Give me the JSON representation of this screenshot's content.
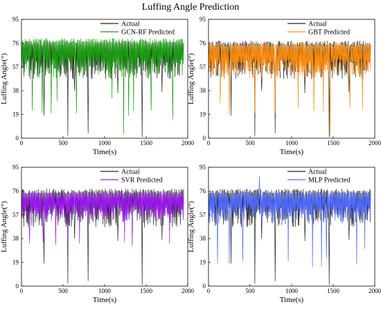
{
  "title": "Luffing Angle  Prediction",
  "colors": {
    "actual": "#222222",
    "gcn": "#1a9e12",
    "gbt": "#ff8c0a",
    "svr": "#9b17f2",
    "mlp": "#4f6bff"
  },
  "chart_data": [
    {
      "type": "line",
      "xlabel": "Time(s)",
      "ylabel": "Luffing Angle(°)",
      "xlim": [
        0,
        2000
      ],
      "ylim": [
        0,
        95
      ],
      "xticks": [
        0,
        500,
        1000,
        1500,
        2000
      ],
      "yticks": [
        0,
        19,
        38,
        57,
        76,
        95
      ],
      "legend_position": "top-center",
      "series": [
        {
          "name": "Actual",
          "color_key": "actual",
          "band": [
            47,
            78
          ],
          "spikes": [
            [
              270,
              18
            ],
            [
              560,
              2
            ],
            [
              800,
              4
            ],
            [
              1450,
              1
            ],
            [
              640,
              38
            ],
            [
              1160,
              36
            ],
            [
              1690,
              37
            ]
          ]
        },
        {
          "name": "GCN-RF Predicted",
          "color_key": "gcn",
          "band": [
            48,
            80
          ],
          "spikes": [
            [
              130,
              22
            ],
            [
              250,
              20
            ],
            [
              360,
              20
            ],
            [
              430,
              30
            ],
            [
              660,
              20
            ],
            [
              1090,
              32
            ],
            [
              1230,
              3
            ],
            [
              1290,
              18
            ],
            [
              1350,
              22
            ],
            [
              1560,
              22
            ],
            [
              1820,
              15
            ]
          ]
        }
      ]
    },
    {
      "type": "line",
      "xlabel": "Time(s)",
      "ylabel": "Luffing Angle(°)",
      "xlim": [
        0,
        2000
      ],
      "ylim": [
        0,
        95
      ],
      "xticks": [
        0,
        500,
        1000,
        1500,
        2000
      ],
      "yticks": [
        0,
        19,
        38,
        57,
        76,
        95
      ],
      "legend_position": "top-center",
      "series": [
        {
          "name": "Actual",
          "color_key": "actual",
          "band": [
            47,
            78
          ],
          "spikes": [
            [
              270,
              18
            ],
            [
              560,
              2
            ],
            [
              800,
              4
            ],
            [
              1450,
              1
            ],
            [
              640,
              38
            ],
            [
              1160,
              36
            ],
            [
              1690,
              37
            ]
          ]
        },
        {
          "name": "GBT Predicted",
          "color_key": "gbt",
          "band": [
            48,
            77
          ],
          "spikes": [
            [
              140,
              28
            ],
            [
              250,
              19
            ],
            [
              560,
              20
            ],
            [
              800,
              20
            ],
            [
              1080,
              24
            ],
            [
              1270,
              22
            ],
            [
              1380,
              22
            ],
            [
              1460,
              2
            ],
            [
              1700,
              24
            ],
            [
              1850,
              23
            ]
          ]
        }
      ]
    },
    {
      "type": "line",
      "xlabel": "Time(s)",
      "ylabel": "Luffing Angle(°)",
      "xlim": [
        0,
        2000
      ],
      "ylim": [
        0,
        95
      ],
      "xticks": [
        0,
        500,
        1000,
        1500,
        2000
      ],
      "yticks": [
        0,
        19,
        38,
        57,
        76,
        95
      ],
      "legend_position": "top-center",
      "series": [
        {
          "name": "Actual",
          "color_key": "actual",
          "band": [
            47,
            78
          ],
          "spikes": [
            [
              270,
              18
            ],
            [
              560,
              2
            ],
            [
              800,
              4
            ],
            [
              1450,
              1
            ],
            [
              640,
              38
            ],
            [
              1160,
              36
            ],
            [
              1690,
              37
            ]
          ]
        },
        {
          "name": "SVR Predicted",
          "color_key": "svr",
          "band": [
            52,
            76
          ],
          "spikes": [
            [
              100,
              34
            ],
            [
              260,
              35
            ],
            [
              410,
              33
            ],
            [
              560,
              35
            ],
            [
              700,
              34
            ],
            [
              1240,
              35
            ],
            [
              1330,
              32
            ],
            [
              1780,
              34
            ]
          ]
        }
      ]
    },
    {
      "type": "line",
      "xlabel": "Time(s)",
      "ylabel": "Luffing Angle(°)",
      "xlim": [
        0,
        2000
      ],
      "ylim": [
        0,
        95
      ],
      "xticks": [
        0,
        500,
        1000,
        1500,
        2000
      ],
      "yticks": [
        0,
        19,
        38,
        57,
        76,
        95
      ],
      "legend_position": "top-center",
      "series": [
        {
          "name": "Actual",
          "color_key": "actual",
          "band": [
            47,
            78
          ],
          "spikes": [
            [
              270,
              18
            ],
            [
              560,
              2
            ],
            [
              800,
              4
            ],
            [
              1450,
              1
            ],
            [
              640,
              38
            ],
            [
              1160,
              36
            ],
            [
              1690,
              37
            ]
          ]
        },
        {
          "name": "MLP Predicted",
          "color_key": "mlp",
          "band": [
            50,
            76
          ],
          "spikes": [
            [
              110,
              18
            ],
            [
              250,
              18
            ],
            [
              410,
              20
            ],
            [
              610,
              88
            ],
            [
              960,
              20
            ],
            [
              1250,
              15
            ],
            [
              1360,
              16
            ],
            [
              1420,
              22
            ],
            [
              1780,
              18
            ],
            [
              1880,
              30
            ]
          ]
        }
      ]
    }
  ]
}
